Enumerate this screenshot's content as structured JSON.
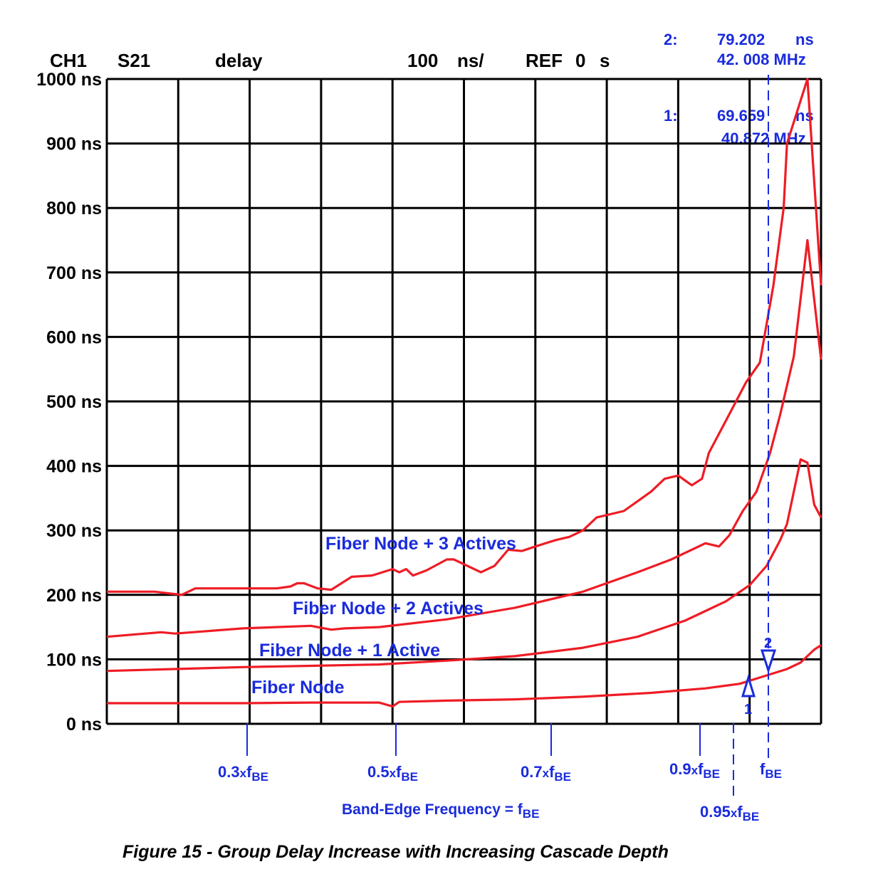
{
  "header": {
    "channel": "CH1",
    "param": "S21",
    "format": "delay",
    "scale_value": "100",
    "scale_unit": "ns/",
    "ref_label": "REF",
    "ref_value": "0",
    "ref_unit": "s"
  },
  "markers": {
    "m2": {
      "id": "2:",
      "value": "79.202",
      "unit": "ns",
      "freq": "42. 008 MHz"
    },
    "m1": {
      "id": "1:",
      "value": "69.659",
      "unit": "ns",
      "freq": "40.872 MHz"
    },
    "m1_symbol": "1",
    "m2_symbol": "2"
  },
  "series_labels": {
    "s3": "Fiber Node + 3 Actives",
    "s2": "Fiber Node + 2 Actives",
    "s1": "Fiber Node + 1 Active",
    "s0": "Fiber Node"
  },
  "x_axis": {
    "ticks": [
      {
        "prefix": "0.3",
        "x": "x",
        "f": "f",
        "sub": "BE"
      },
      {
        "prefix": "0.5",
        "x": "x",
        "f": "f",
        "sub": "BE"
      },
      {
        "prefix": "0.7",
        "x": "x",
        "f": "f",
        "sub": "BE"
      },
      {
        "prefix": "0.9",
        "x": "x",
        "f": "f",
        "sub": "BE"
      },
      {
        "prefix": "0.95",
        "x": "x",
        "f": "f",
        "sub": "BE"
      },
      {
        "prefix": "",
        "x": "",
        "f": "f",
        "sub": "BE"
      }
    ],
    "title_text": "Band-Edge Frequency = f",
    "title_sub": "BE"
  },
  "caption": "Figure 15 - Group Delay Increase with Increasing Cascade Depth",
  "colors": {
    "trace": "#ee1c25",
    "annotation": "#1a2bdc",
    "grid": "#000000"
  },
  "chart_data": {
    "type": "line",
    "title": "Figure 15 - Group Delay Increase with Increasing Cascade Depth",
    "xlabel": "Band-Edge Frequency = fBE",
    "ylabel": "",
    "x_unit": "fraction of fBE",
    "ylim": [
      0,
      1000
    ],
    "xlim": [
      0.0,
      1.05
    ],
    "yticks": [
      "0 ns",
      "100 ns",
      "200 ns",
      "300 ns",
      "400 ns",
      "500 ns",
      "600 ns",
      "700 ns",
      "800 ns",
      "900 ns",
      "1000 ns"
    ],
    "grid": true,
    "legend": "inline labels",
    "series": [
      {
        "name": "Fiber Node",
        "points": [
          [
            0.0,
            32
          ],
          [
            0.2,
            32
          ],
          [
            0.3,
            33
          ],
          [
            0.4,
            33
          ],
          [
            0.42,
            27
          ],
          [
            0.43,
            34
          ],
          [
            0.5,
            36
          ],
          [
            0.6,
            38
          ],
          [
            0.7,
            42
          ],
          [
            0.8,
            48
          ],
          [
            0.88,
            55
          ],
          [
            0.93,
            62
          ],
          [
            0.97,
            75
          ],
          [
            1.0,
            85
          ],
          [
            1.02,
            95
          ],
          [
            1.04,
            115
          ],
          [
            1.05,
            122
          ]
        ]
      },
      {
        "name": "Fiber Node + 1 Active",
        "points": [
          [
            0.0,
            82
          ],
          [
            0.1,
            85
          ],
          [
            0.2,
            88
          ],
          [
            0.3,
            90
          ],
          [
            0.4,
            92
          ],
          [
            0.5,
            98
          ],
          [
            0.6,
            105
          ],
          [
            0.7,
            118
          ],
          [
            0.78,
            135
          ],
          [
            0.85,
            160
          ],
          [
            0.88,
            175
          ],
          [
            0.91,
            190
          ],
          [
            0.945,
            215
          ],
          [
            0.97,
            245
          ],
          [
            0.99,
            285
          ],
          [
            1.0,
            310
          ],
          [
            1.02,
            410
          ],
          [
            1.03,
            405
          ],
          [
            1.04,
            340
          ],
          [
            1.05,
            320
          ]
        ]
      },
      {
        "name": "Fiber Node + 2 Actives",
        "points": [
          [
            0.0,
            135
          ],
          [
            0.08,
            142
          ],
          [
            0.1,
            140
          ],
          [
            0.2,
            148
          ],
          [
            0.3,
            152
          ],
          [
            0.33,
            146
          ],
          [
            0.35,
            148
          ],
          [
            0.4,
            150
          ],
          [
            0.5,
            162
          ],
          [
            0.6,
            180
          ],
          [
            0.7,
            205
          ],
          [
            0.78,
            235
          ],
          [
            0.83,
            255
          ],
          [
            0.88,
            280
          ],
          [
            0.9,
            275
          ],
          [
            0.915,
            292
          ],
          [
            0.935,
            330
          ],
          [
            0.955,
            360
          ],
          [
            0.975,
            420
          ],
          [
            0.99,
            480
          ],
          [
            1.01,
            570
          ],
          [
            1.03,
            750
          ],
          [
            1.05,
            565
          ]
        ]
      },
      {
        "name": "Fiber Node + 3 Actives",
        "points": [
          [
            0.0,
            205
          ],
          [
            0.07,
            205
          ],
          [
            0.11,
            200
          ],
          [
            0.13,
            210
          ],
          [
            0.25,
            210
          ],
          [
            0.27,
            213
          ],
          [
            0.28,
            218
          ],
          [
            0.29,
            218
          ],
          [
            0.31,
            210
          ],
          [
            0.33,
            208
          ],
          [
            0.36,
            228
          ],
          [
            0.39,
            230
          ],
          [
            0.42,
            240
          ],
          [
            0.43,
            235
          ],
          [
            0.44,
            240
          ],
          [
            0.45,
            230
          ],
          [
            0.47,
            238
          ],
          [
            0.5,
            255
          ],
          [
            0.51,
            255
          ],
          [
            0.52,
            250
          ],
          [
            0.55,
            235
          ],
          [
            0.57,
            245
          ],
          [
            0.59,
            270
          ],
          [
            0.61,
            268
          ],
          [
            0.63,
            275
          ],
          [
            0.66,
            285
          ],
          [
            0.68,
            290
          ],
          [
            0.7,
            300
          ],
          [
            0.72,
            320
          ],
          [
            0.76,
            330
          ],
          [
            0.78,
            345
          ],
          [
            0.8,
            360
          ],
          [
            0.82,
            380
          ],
          [
            0.84,
            385
          ],
          [
            0.86,
            370
          ],
          [
            0.875,
            380
          ],
          [
            0.885,
            420
          ],
          [
            0.91,
            470
          ],
          [
            0.94,
            530
          ],
          [
            0.96,
            560
          ],
          [
            0.98,
            680
          ],
          [
            0.995,
            800
          ],
          [
            1.0,
            900
          ],
          [
            1.03,
            1000
          ],
          [
            1.05,
            680
          ]
        ]
      }
    ],
    "annotations": [
      {
        "marker": "1",
        "value_ns": 69.659,
        "freq_MHz": 40.872
      },
      {
        "marker": "2",
        "value_ns": 79.202,
        "freq_MHz": 42.008
      }
    ]
  }
}
